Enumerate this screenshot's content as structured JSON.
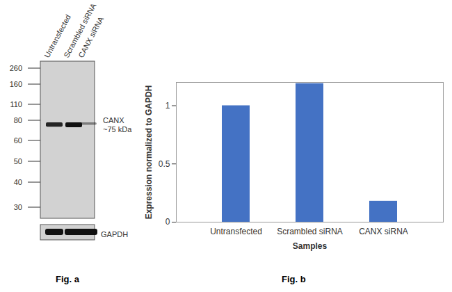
{
  "chart_data": {
    "type": "bar",
    "categories": [
      "Untransfected",
      "Scrambled siRNA",
      "CANX siRNA"
    ],
    "values": [
      1,
      1.19,
      0.18
    ],
    "color": "#4472c4",
    "ylim": [
      0,
      1.2
    ],
    "yticks": [
      0,
      0.5,
      1
    ],
    "xlabel": "Samples",
    "ylabel": "Expression normalized to GAPDH",
    "grid": false,
    "caption": "Fig. b"
  },
  "blot": {
    "lanes": [
      "Untransfected",
      "Scrambled siRNA",
      "CANX siRNA"
    ],
    "markers_kda": [
      260,
      160,
      110,
      80,
      60,
      50,
      40,
      30
    ],
    "band": {
      "label": "CANX",
      "size_label": "~75 kDa"
    },
    "loading_control": "GAPDH",
    "caption": "Fig. a"
  }
}
